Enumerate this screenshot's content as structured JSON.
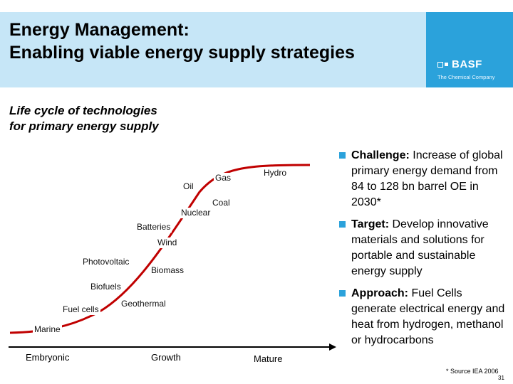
{
  "header": {
    "title_line1": "Energy Management:",
    "title_line2": "Enabling viable energy supply strategies",
    "logo_text": "BASF",
    "logo_tagline": "The Chemical Company",
    "logo_bg": "#2ba2db",
    "band_bg": "#c6e6f7"
  },
  "subtitle": {
    "line1": "Life cycle of technologies",
    "line2": "for primary energy supply"
  },
  "diagram": {
    "technologies": [
      "Hydro",
      "Gas",
      "Oil",
      "Coal",
      "Nuclear",
      "Batteries",
      "Wind",
      "Photovoltaic",
      "Biomass",
      "Biofuels",
      "Geothermal",
      "Fuel cells",
      "Marine"
    ],
    "stages": [
      "Embryonic",
      "Growth",
      "Mature"
    ],
    "curve_color": "#c00000"
  },
  "bullets": [
    {
      "head": "Challenge:",
      "text": " Increase of global primary energy demand from 84 to 128 bn barrel OE in 2030*"
    },
    {
      "head": "Target:",
      "text": " Develop innovative materials and solutions for portable and sustainable energy supply"
    },
    {
      "head": "Approach:",
      "text": " Fuel Cells generate electrical energy and heat from hydrogen, methanol or hydrocarbons"
    }
  ],
  "footnote": "* Source IEA 2006",
  "page_number": "31"
}
